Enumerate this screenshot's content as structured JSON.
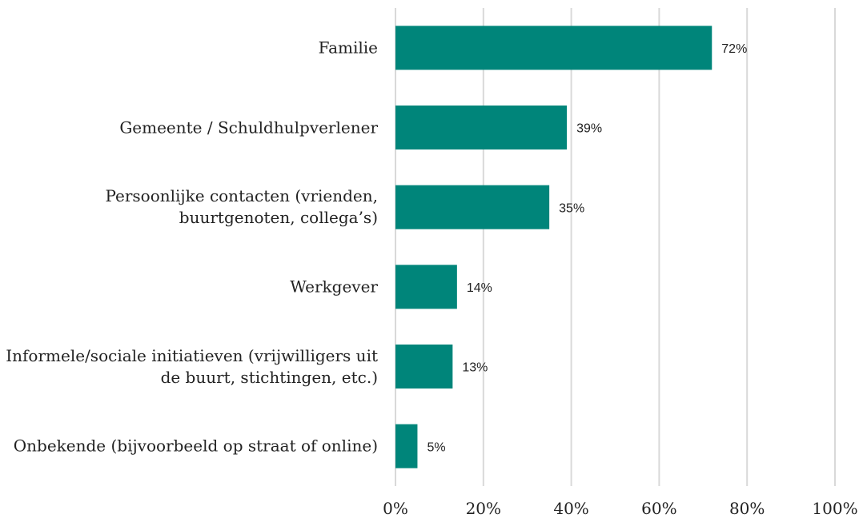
{
  "chart_data": {
    "type": "bar",
    "orientation": "horizontal",
    "categories": [
      "Familie",
      "Gemeente / Schuldhulpverlener",
      "Persoonlijke contacten (vrienden, buurtgenoten, collega’s)",
      "Werkgever",
      "Informele/sociale initiatieven (vrijwilligers uit de buurt, stichtingen, etc.)",
      "Onbekende (bijvoorbeeld op straat of online)"
    ],
    "values": [
      72,
      39,
      35,
      14,
      13,
      5
    ],
    "value_labels": [
      "72%",
      "39%",
      "35%",
      "14%",
      "13%",
      "5%"
    ],
    "color": "#00857a",
    "xlim": [
      0,
      100
    ],
    "xticks": [
      {
        "value": 0,
        "label": "0%"
      },
      {
        "value": 20,
        "label": "20%"
      },
      {
        "value": 40,
        "label": "40%"
      },
      {
        "value": 60,
        "label": "60%"
      },
      {
        "value": 80,
        "label": "80%"
      },
      {
        "value": 100,
        "label": "100%"
      }
    ],
    "grid": true
  }
}
